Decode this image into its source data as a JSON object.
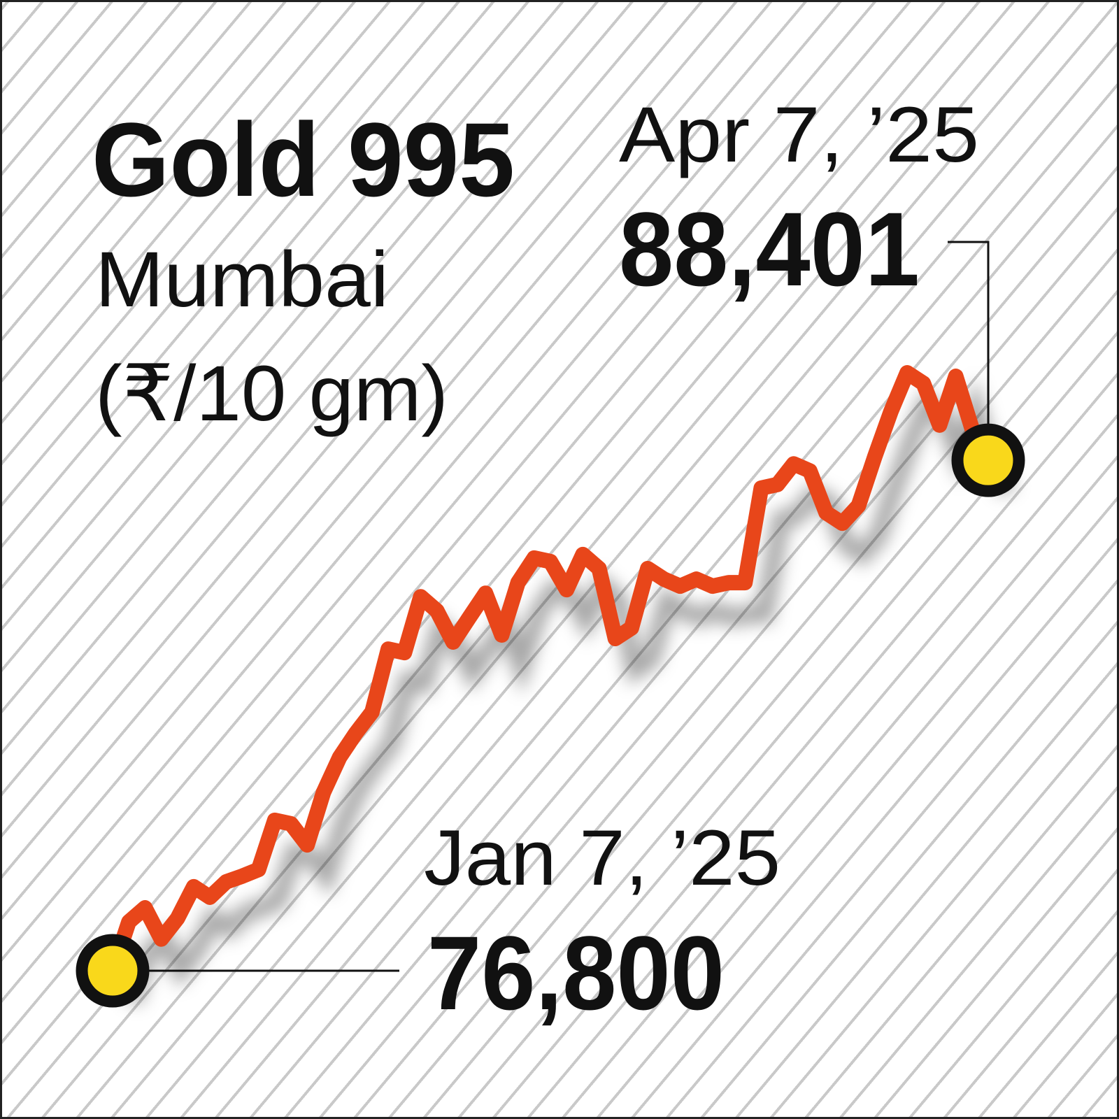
{
  "chart_data": {
    "type": "line",
    "title": "Gold 995",
    "subtitle": "Mumbai",
    "unit": "(₹/10 gm)",
    "color": "#e8461a",
    "categories": [
      "Jan 7, ’25",
      null,
      null,
      null,
      null,
      null,
      null,
      null,
      null,
      null,
      null,
      null,
      null,
      null,
      null,
      null,
      null,
      null,
      null,
      null,
      null,
      null,
      null,
      null,
      null,
      null,
      null,
      null,
      null,
      null,
      null,
      null,
      null,
      null,
      null,
      null,
      null,
      null,
      null,
      null,
      null,
      null,
      null,
      null,
      null,
      null,
      null,
      null,
      null,
      null,
      null,
      null,
      null,
      null,
      "Apr 7, ’25"
    ],
    "values": [
      76800,
      77910,
      78230,
      77520,
      77990,
      78710,
      78470,
      78820,
      78950,
      79100,
      80220,
      80140,
      79660,
      80850,
      81650,
      82200,
      82680,
      84110,
      84030,
      85300,
      84980,
      84270,
      84830,
      85380,
      84430,
      85620,
      86180,
      86100,
      85460,
      86260,
      85940,
      84350,
      84590,
      85940,
      85700,
      85540,
      85700,
      85540,
      85620,
      85620,
      87770,
      87850,
      88320,
      88160,
      87210,
      86970,
      87370,
      88480,
      89510,
      90390,
      90150,
      89200,
      90310,
      89120,
      88401
    ],
    "value_labels": [
      "76,800",
      null,
      null,
      null,
      null,
      null,
      null,
      null,
      null,
      null,
      null,
      null,
      null,
      null,
      null,
      null,
      null,
      null,
      null,
      null,
      null,
      null,
      null,
      null,
      null,
      null,
      null,
      null,
      null,
      null,
      null,
      null,
      null,
      null,
      null,
      null,
      null,
      null,
      null,
      null,
      null,
      null,
      null,
      null,
      null,
      null,
      null,
      null,
      null,
      null,
      null,
      null,
      null,
      null,
      "88,401"
    ]
  }
}
